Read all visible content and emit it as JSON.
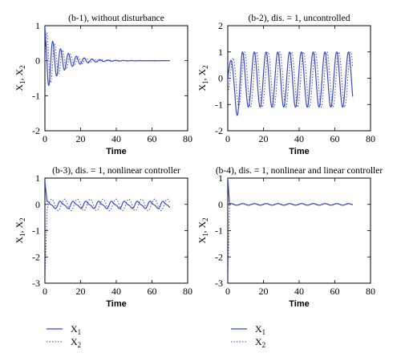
{
  "colors": {
    "series": "#3b47c8"
  },
  "chart_data": [
    {
      "id": "b1",
      "type": "line",
      "title": "(b-1), without disturbance",
      "xlabel": "Time",
      "ylabel_sym": "X",
      "ylabel_sub": [
        "1",
        "2"
      ],
      "xlim": [
        0,
        80
      ],
      "ylim": [
        -2,
        1
      ],
      "xticks": [
        0,
        20,
        40,
        60,
        80
      ],
      "yticks": [
        -2,
        -1,
        0,
        1
      ],
      "model": {
        "kind": "decay",
        "amp": 0.9,
        "period": 4.4,
        "tau": 9.0,
        "lag": 1.1,
        "t_end": 70
      },
      "series": [
        {
          "name": "X1",
          "style": "solid"
        },
        {
          "name": "X2",
          "style": "dotted"
        }
      ]
    },
    {
      "id": "b2",
      "type": "line",
      "title": "(b-2), dis. = 1, uncontrolled",
      "xlabel": "Time",
      "ylabel_sym": "X",
      "ylabel_sub": [
        "1",
        "2"
      ],
      "xlim": [
        0,
        80
      ],
      "ylim": [
        -2,
        2
      ],
      "xticks": [
        0,
        20,
        40,
        60,
        80
      ],
      "yticks": [
        -2,
        -1,
        0,
        1,
        2
      ],
      "model": {
        "kind": "sustained",
        "amp": 1.05,
        "offset": -0.05,
        "period": 6.6,
        "lag": 1.2,
        "t_end": 70
      },
      "series": [
        {
          "name": "X1",
          "style": "solid"
        },
        {
          "name": "X2",
          "style": "dotted"
        }
      ]
    },
    {
      "id": "b3",
      "type": "line",
      "title": "(b-3), dis. = 1, nonlinear controller",
      "xlabel": "Time",
      "ylabel_sym": "X",
      "ylabel_sub": [
        "1",
        "2"
      ],
      "xlim": [
        0,
        80
      ],
      "ylim": [
        -3,
        1
      ],
      "xticks": [
        0,
        20,
        40,
        60,
        80
      ],
      "yticks": [
        -3,
        -2,
        -1,
        0,
        1
      ],
      "model": {
        "kind": "small",
        "amp": 0.12,
        "amp2": 0.22,
        "offset": -0.02,
        "period": 7.2,
        "lag": 2.0,
        "t_end": 70
      },
      "series": [
        {
          "name": "X1",
          "style": "solid"
        },
        {
          "name": "X2",
          "style": "dotted"
        }
      ]
    },
    {
      "id": "b4",
      "type": "line",
      "title": "(b-4), dis. = 1, nonlinear and linear controller",
      "xlabel": "Time",
      "ylabel_sym": "X",
      "ylabel_sub": [
        "1",
        "2"
      ],
      "xlim": [
        0,
        80
      ],
      "ylim": [
        -3,
        1
      ],
      "xticks": [
        0,
        20,
        40,
        60,
        80
      ],
      "yticks": [
        -3,
        -2,
        -1,
        0,
        1
      ],
      "model": {
        "kind": "flat",
        "amp": 0.03,
        "period": 6.6,
        "lag": 0.5,
        "t_end": 70
      },
      "series": [
        {
          "name": "X1",
          "style": "solid"
        },
        {
          "name": "X2",
          "style": "dotted"
        }
      ]
    }
  ],
  "legends": [
    {
      "x1_label": "X",
      "x1_sub": "1",
      "x2_label": "X",
      "x2_sub": "2"
    },
    {
      "x1_label": "X",
      "x1_sub": "1",
      "x2_label": "X",
      "x2_sub": "2"
    }
  ]
}
